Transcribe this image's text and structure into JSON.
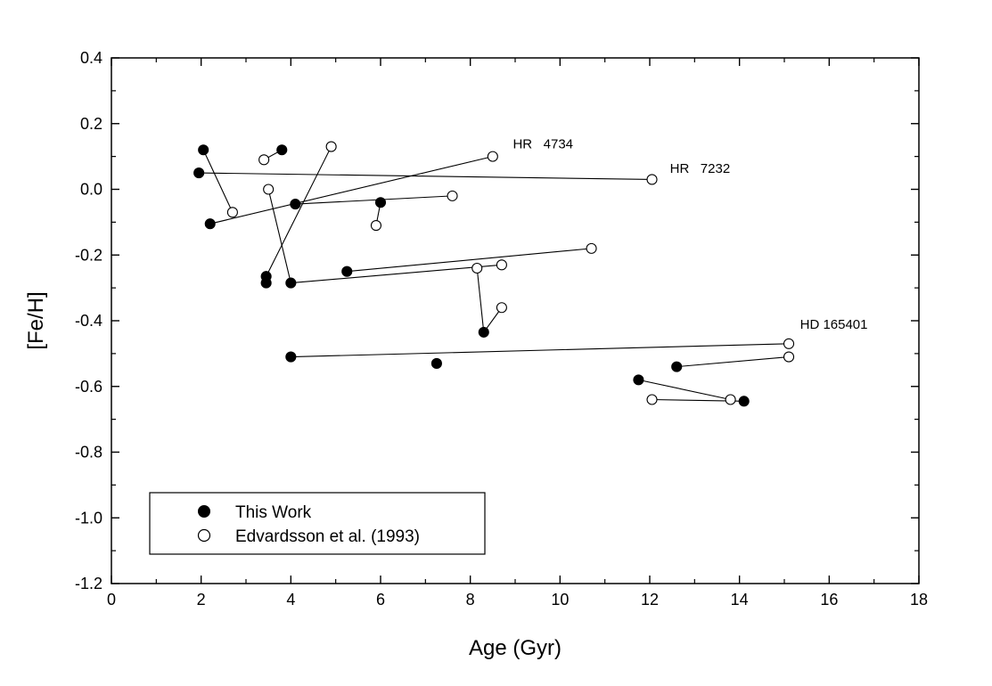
{
  "chart_data": {
    "type": "scatter",
    "title": "",
    "xlabel": "Age (Gyr)",
    "ylabel": "[Fe/H]",
    "xlim": [
      0,
      18
    ],
    "ylim": [
      -1.2,
      0.4
    ],
    "x_ticks": [
      "0",
      "2",
      "4",
      "6",
      "8",
      "10",
      "12",
      "14",
      "16",
      "18"
    ],
    "y_ticks": [
      "0.4",
      "0.2",
      "0.0",
      "-0.2",
      "-0.4",
      "-0.6",
      "-0.8",
      "-1.0",
      "-1.2"
    ],
    "grid": false,
    "legend_position": "bottom-left",
    "series": [
      {
        "name": "This Work",
        "marker": "filled-circle",
        "color": "#000000",
        "points": [
          [
            2.05,
            0.12
          ],
          [
            3.8,
            0.12
          ],
          [
            1.95,
            0.05
          ],
          [
            2.2,
            -0.105
          ],
          [
            4.1,
            -0.045
          ],
          [
            6.0,
            -0.04
          ],
          [
            3.45,
            -0.265
          ],
          [
            3.45,
            -0.285
          ],
          [
            4.0,
            -0.285
          ],
          [
            5.25,
            -0.25
          ],
          [
            8.3,
            -0.435
          ],
          [
            4.0,
            -0.51
          ],
          [
            7.25,
            -0.53
          ],
          [
            11.75,
            -0.58
          ],
          [
            12.6,
            -0.54
          ],
          [
            14.1,
            -0.645
          ]
        ]
      },
      {
        "name": "Edvardsson et al. (1993)",
        "marker": "open-circle",
        "color": "#000000",
        "points": [
          [
            2.7,
            -0.07
          ],
          [
            3.4,
            0.09
          ],
          [
            4.9,
            0.13
          ],
          [
            8.5,
            0.1
          ],
          [
            12.05,
            0.03
          ],
          [
            3.5,
            0.0
          ],
          [
            7.6,
            -0.02
          ],
          [
            5.9,
            -0.11
          ],
          [
            10.7,
            -0.18
          ],
          [
            8.15,
            -0.24
          ],
          [
            8.7,
            -0.23
          ],
          [
            8.7,
            -0.36
          ],
          [
            15.1,
            -0.47
          ],
          [
            15.1,
            -0.51
          ],
          [
            12.05,
            -0.64
          ],
          [
            13.8,
            -0.64
          ]
        ]
      }
    ],
    "connections": [
      [
        [
          2.05,
          0.12
        ],
        [
          2.7,
          -0.07
        ]
      ],
      [
        [
          3.8,
          0.12
        ],
        [
          3.4,
          0.09
        ]
      ],
      [
        [
          1.95,
          0.05
        ],
        [
          12.05,
          0.03
        ]
      ],
      [
        [
          2.2,
          -0.105
        ],
        [
          8.5,
          0.1
        ]
      ],
      [
        [
          4.1,
          -0.045
        ],
        [
          7.6,
          -0.02
        ]
      ],
      [
        [
          6.0,
          -0.04
        ],
        [
          5.9,
          -0.11
        ]
      ],
      [
        [
          3.45,
          -0.265
        ],
        [
          4.9,
          0.13
        ]
      ],
      [
        [
          4.0,
          -0.285
        ],
        [
          3.5,
          0.0
        ]
      ],
      [
        [
          4.0,
          -0.285
        ],
        [
          8.7,
          -0.23
        ]
      ],
      [
        [
          5.25,
          -0.25
        ],
        [
          10.7,
          -0.18
        ]
      ],
      [
        [
          8.3,
          -0.435
        ],
        [
          8.15,
          -0.24
        ]
      ],
      [
        [
          8.3,
          -0.435
        ],
        [
          8.7,
          -0.36
        ]
      ],
      [
        [
          4.0,
          -0.51
        ],
        [
          15.1,
          -0.47
        ]
      ],
      [
        [
          12.6,
          -0.54
        ],
        [
          15.1,
          -0.51
        ]
      ],
      [
        [
          11.75,
          -0.58
        ],
        [
          13.8,
          -0.64
        ]
      ],
      [
        [
          12.05,
          -0.64
        ],
        [
          14.1,
          -0.645
        ]
      ]
    ],
    "annotations": [
      {
        "text": "HR   4734",
        "x": 8.95,
        "y": 0.125
      },
      {
        "text": "HR   7232",
        "x": 12.45,
        "y": 0.05
      },
      {
        "text": "HD 165401",
        "x": 15.35,
        "y": -0.425
      }
    ],
    "legend": [
      {
        "label": "This Work",
        "marker": "filled-circle"
      },
      {
        "label": "Edvardsson et al. (1993)",
        "marker": "open-circle"
      }
    ]
  }
}
